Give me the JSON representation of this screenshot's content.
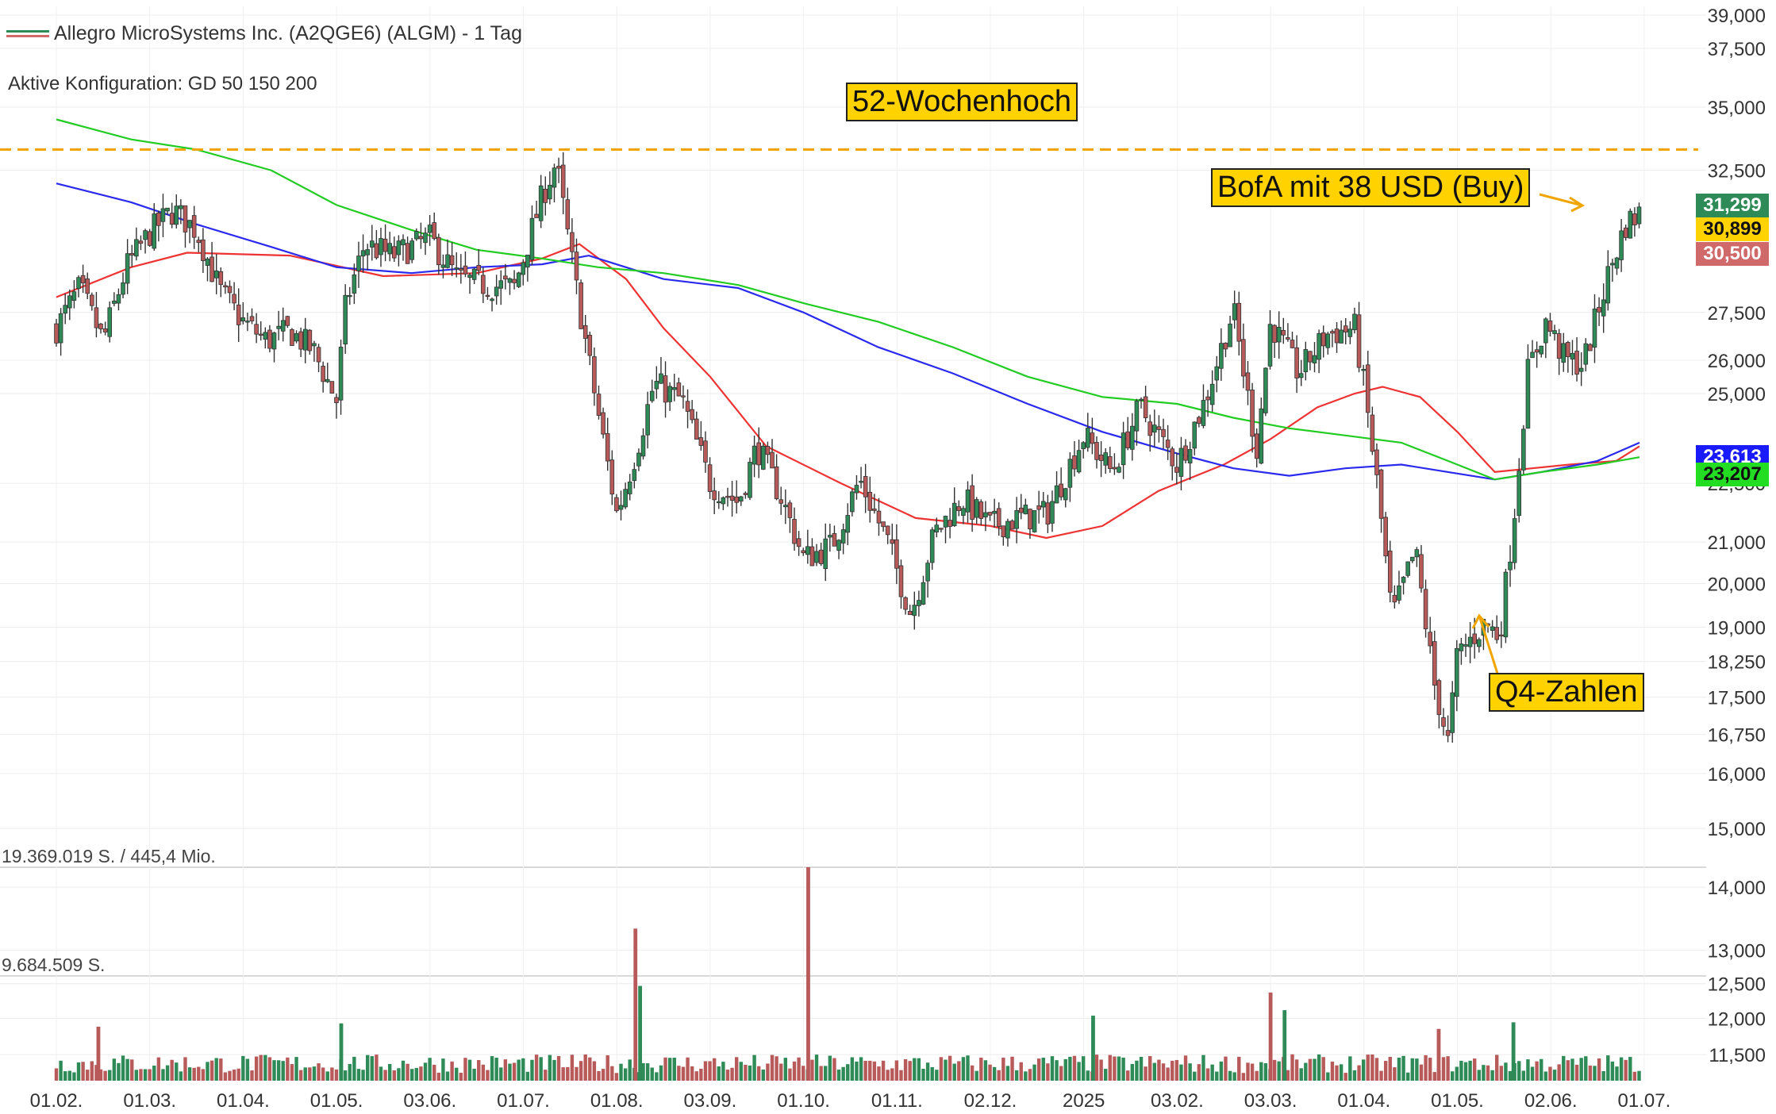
{
  "legend": {
    "title": "Allegro MicroSystems Inc. (A2QGE6) (ALGM) - 1 Tag",
    "config": "Aktive Konfiguration: GD 50 150 200"
  },
  "annotations": {
    "high_52w": "52-Wochenhoch",
    "bofa": "BofA mit 38 USD (Buy)",
    "q4": "Q4-Zahlen"
  },
  "volume_labels": {
    "max": "19.369.019 S. / 445,4 Mio.",
    "half": "9.684.509 S."
  },
  "price_badges": [
    {
      "value": "31,299",
      "bg": "#2e8b57",
      "fg": "#ffffff"
    },
    {
      "value": "30,899",
      "bg": "#ffd200",
      "fg": "#111111"
    },
    {
      "value": "30,500",
      "bg": "#d06a6a",
      "fg": "#ffffff"
    },
    {
      "value": "23,613",
      "bg": "#1a1aff",
      "fg": "#ffffff"
    },
    {
      "value": "23,207",
      "bg": "#22dd22",
      "fg": "#111111"
    }
  ],
  "chart_data": {
    "type": "candlestick",
    "title": "Allegro MicroSystems Inc. (A2QGE6) (ALGM) - 1 Tag",
    "price_axis": {
      "scale": "log",
      "ticks": [
        "39,000",
        "37,500",
        "35,000",
        "32,500",
        "27,500",
        "26,000",
        "25,000",
        "22,500",
        "21,000",
        "20,000",
        "19,000",
        "18,250",
        "17,500",
        "16,750",
        "16,000",
        "15,000",
        "14,000",
        "13,000",
        "12,500",
        "12,000",
        "11,500"
      ],
      "range": [
        11.3,
        39.4
      ]
    },
    "x_ticks": [
      "01.02.",
      "01.03.",
      "01.04.",
      "01.05.",
      "03.06.",
      "01.07.",
      "01.08.",
      "03.09.",
      "01.10.",
      "01.11.",
      "02.12.",
      "2025",
      "03.02.",
      "03.03.",
      "01.04.",
      "01.05.",
      "02.06.",
      "01.07."
    ],
    "high_52w_level": 33.3,
    "close_path": [
      {
        "m": 0.0,
        "price": 27.0
      },
      {
        "m": 0.25,
        "price": 28.3
      },
      {
        "m": 0.5,
        "price": 26.6
      },
      {
        "m": 0.75,
        "price": 29.0
      },
      {
        "m": 1.0,
        "price": 30.2
      },
      {
        "m": 1.25,
        "price": 31.0
      },
      {
        "m": 1.5,
        "price": 30.3
      },
      {
        "m": 1.75,
        "price": 28.2
      },
      {
        "m": 2.0,
        "price": 27.2
      },
      {
        "m": 2.25,
        "price": 26.6
      },
      {
        "m": 2.5,
        "price": 26.9
      },
      {
        "m": 2.75,
        "price": 26.3
      },
      {
        "m": 3.0,
        "price": 24.8
      },
      {
        "m": 3.1,
        "price": 27.8
      },
      {
        "m": 3.3,
        "price": 29.8
      },
      {
        "m": 3.6,
        "price": 29.4
      },
      {
        "m": 4.0,
        "price": 30.0
      },
      {
        "m": 4.3,
        "price": 28.6
      },
      {
        "m": 4.6,
        "price": 28.4
      },
      {
        "m": 4.9,
        "price": 28.3
      },
      {
        "m": 5.2,
        "price": 31.5
      },
      {
        "m": 5.35,
        "price": 32.8
      },
      {
        "m": 5.55,
        "price": 28.6
      },
      {
        "m": 5.75,
        "price": 25.2
      },
      {
        "m": 6.0,
        "price": 21.7
      },
      {
        "m": 6.2,
        "price": 23.3
      },
      {
        "m": 6.4,
        "price": 25.3
      },
      {
        "m": 6.7,
        "price": 24.8
      },
      {
        "m": 7.0,
        "price": 22.5
      },
      {
        "m": 7.3,
        "price": 22.0
      },
      {
        "m": 7.5,
        "price": 23.5
      },
      {
        "m": 7.75,
        "price": 22.2
      },
      {
        "m": 8.0,
        "price": 20.6
      },
      {
        "m": 8.3,
        "price": 20.9
      },
      {
        "m": 8.6,
        "price": 22.6
      },
      {
        "m": 8.9,
        "price": 21.0
      },
      {
        "m": 9.15,
        "price": 19.3
      },
      {
        "m": 9.4,
        "price": 21.2
      },
      {
        "m": 9.7,
        "price": 22.1
      },
      {
        "m": 10.0,
        "price": 21.4
      },
      {
        "m": 10.3,
        "price": 21.6
      },
      {
        "m": 10.6,
        "price": 21.7
      },
      {
        "m": 11.0,
        "price": 23.8
      },
      {
        "m": 11.3,
        "price": 22.8
      },
      {
        "m": 11.6,
        "price": 24.6
      },
      {
        "m": 12.0,
        "price": 23.0
      },
      {
        "m": 12.3,
        "price": 24.8
      },
      {
        "m": 12.6,
        "price": 27.6
      },
      {
        "m": 12.85,
        "price": 23.4
      },
      {
        "m": 13.0,
        "price": 27.2
      },
      {
        "m": 13.3,
        "price": 25.6
      },
      {
        "m": 13.6,
        "price": 26.8
      },
      {
        "m": 13.9,
        "price": 27.0
      },
      {
        "m": 14.0,
        "price": 25.2
      },
      {
        "m": 14.15,
        "price": 22.3
      },
      {
        "m": 14.3,
        "price": 19.2
      },
      {
        "m": 14.55,
        "price": 20.8
      },
      {
        "m": 14.75,
        "price": 17.8
      },
      {
        "m": 14.9,
        "price": 16.6
      },
      {
        "m": 15.0,
        "price": 18.4
      },
      {
        "m": 15.3,
        "price": 19.1
      },
      {
        "m": 15.45,
        "price": 18.8
      },
      {
        "m": 15.6,
        "price": 21.5
      },
      {
        "m": 15.75,
        "price": 25.6
      },
      {
        "m": 15.95,
        "price": 27.2
      },
      {
        "m": 16.15,
        "price": 26.0
      },
      {
        "m": 16.35,
        "price": 25.9
      },
      {
        "m": 16.6,
        "price": 28.6
      },
      {
        "m": 16.8,
        "price": 30.5
      },
      {
        "m": 16.95,
        "price": 30.9
      }
    ],
    "ma_series": [
      {
        "color": "#ee3333",
        "points": [
          [
            0.0,
            28.0
          ],
          [
            0.8,
            29.0
          ],
          [
            1.4,
            29.5
          ],
          [
            2.5,
            29.4
          ],
          [
            3.5,
            28.7
          ],
          [
            4.5,
            28.8
          ],
          [
            5.2,
            29.3
          ],
          [
            5.6,
            29.8
          ],
          [
            6.1,
            28.6
          ],
          [
            6.5,
            27.0
          ],
          [
            7.0,
            25.5
          ],
          [
            7.6,
            23.5
          ],
          [
            8.4,
            22.5
          ],
          [
            9.2,
            21.6
          ],
          [
            10.0,
            21.4
          ],
          [
            10.6,
            21.1
          ],
          [
            11.2,
            21.4
          ],
          [
            11.8,
            22.3
          ],
          [
            12.5,
            23.0
          ],
          [
            13.0,
            23.7
          ],
          [
            13.5,
            24.6
          ],
          [
            13.9,
            25.0
          ],
          [
            14.2,
            25.2
          ],
          [
            14.6,
            24.9
          ],
          [
            15.0,
            23.9
          ],
          [
            15.4,
            22.8
          ],
          [
            15.8,
            22.9
          ],
          [
            16.2,
            23.0
          ],
          [
            16.7,
            23.1
          ],
          [
            16.95,
            23.5
          ]
        ]
      },
      {
        "color": "#2a2aee",
        "points": [
          [
            0.0,
            32.0
          ],
          [
            0.8,
            31.3
          ],
          [
            1.5,
            30.5
          ],
          [
            2.3,
            29.7
          ],
          [
            3.0,
            29.0
          ],
          [
            3.8,
            28.8
          ],
          [
            4.5,
            29.0
          ],
          [
            5.2,
            29.1
          ],
          [
            5.7,
            29.4
          ],
          [
            6.5,
            28.6
          ],
          [
            7.3,
            28.3
          ],
          [
            8.0,
            27.5
          ],
          [
            8.8,
            26.4
          ],
          [
            9.6,
            25.6
          ],
          [
            10.4,
            24.7
          ],
          [
            11.2,
            23.9
          ],
          [
            12.0,
            23.3
          ],
          [
            12.6,
            22.9
          ],
          [
            13.2,
            22.7
          ],
          [
            13.8,
            22.9
          ],
          [
            14.4,
            23.0
          ],
          [
            14.9,
            22.8
          ],
          [
            15.4,
            22.6
          ],
          [
            15.9,
            22.8
          ],
          [
            16.5,
            23.1
          ],
          [
            16.95,
            23.6
          ]
        ]
      },
      {
        "color": "#22cc22",
        "points": [
          [
            0.0,
            34.5
          ],
          [
            0.8,
            33.7
          ],
          [
            1.5,
            33.3
          ],
          [
            2.3,
            32.5
          ],
          [
            3.0,
            31.2
          ],
          [
            3.8,
            30.3
          ],
          [
            4.5,
            29.6
          ],
          [
            5.2,
            29.3
          ],
          [
            5.8,
            29.0
          ],
          [
            6.5,
            28.8
          ],
          [
            7.3,
            28.4
          ],
          [
            8.0,
            27.8
          ],
          [
            8.8,
            27.2
          ],
          [
            9.6,
            26.4
          ],
          [
            10.4,
            25.5
          ],
          [
            11.2,
            24.9
          ],
          [
            12.0,
            24.7
          ],
          [
            12.6,
            24.3
          ],
          [
            13.2,
            24.0
          ],
          [
            13.8,
            23.8
          ],
          [
            14.4,
            23.6
          ],
          [
            14.9,
            23.1
          ],
          [
            15.4,
            22.6
          ],
          [
            15.9,
            22.8
          ],
          [
            16.5,
            23.0
          ],
          [
            16.95,
            23.2
          ]
        ]
      }
    ],
    "volume_axis": {
      "range": [
        0,
        19369019
      ]
    },
    "volume_spikes": [
      {
        "m": 0.45,
        "volume": 4900000
      },
      {
        "m": 3.05,
        "volume": 5200000
      },
      {
        "m": 6.2,
        "volume": 13800000
      },
      {
        "m": 6.25,
        "volume": 8600000
      },
      {
        "m": 8.05,
        "volume": 19369019
      },
      {
        "m": 11.1,
        "volume": 5900000
      },
      {
        "m": 13.0,
        "volume": 8000000
      },
      {
        "m": 13.15,
        "volume": 6400000
      },
      {
        "m": 14.8,
        "volume": 4700000
      },
      {
        "m": 15.6,
        "volume": 5300000
      }
    ]
  }
}
